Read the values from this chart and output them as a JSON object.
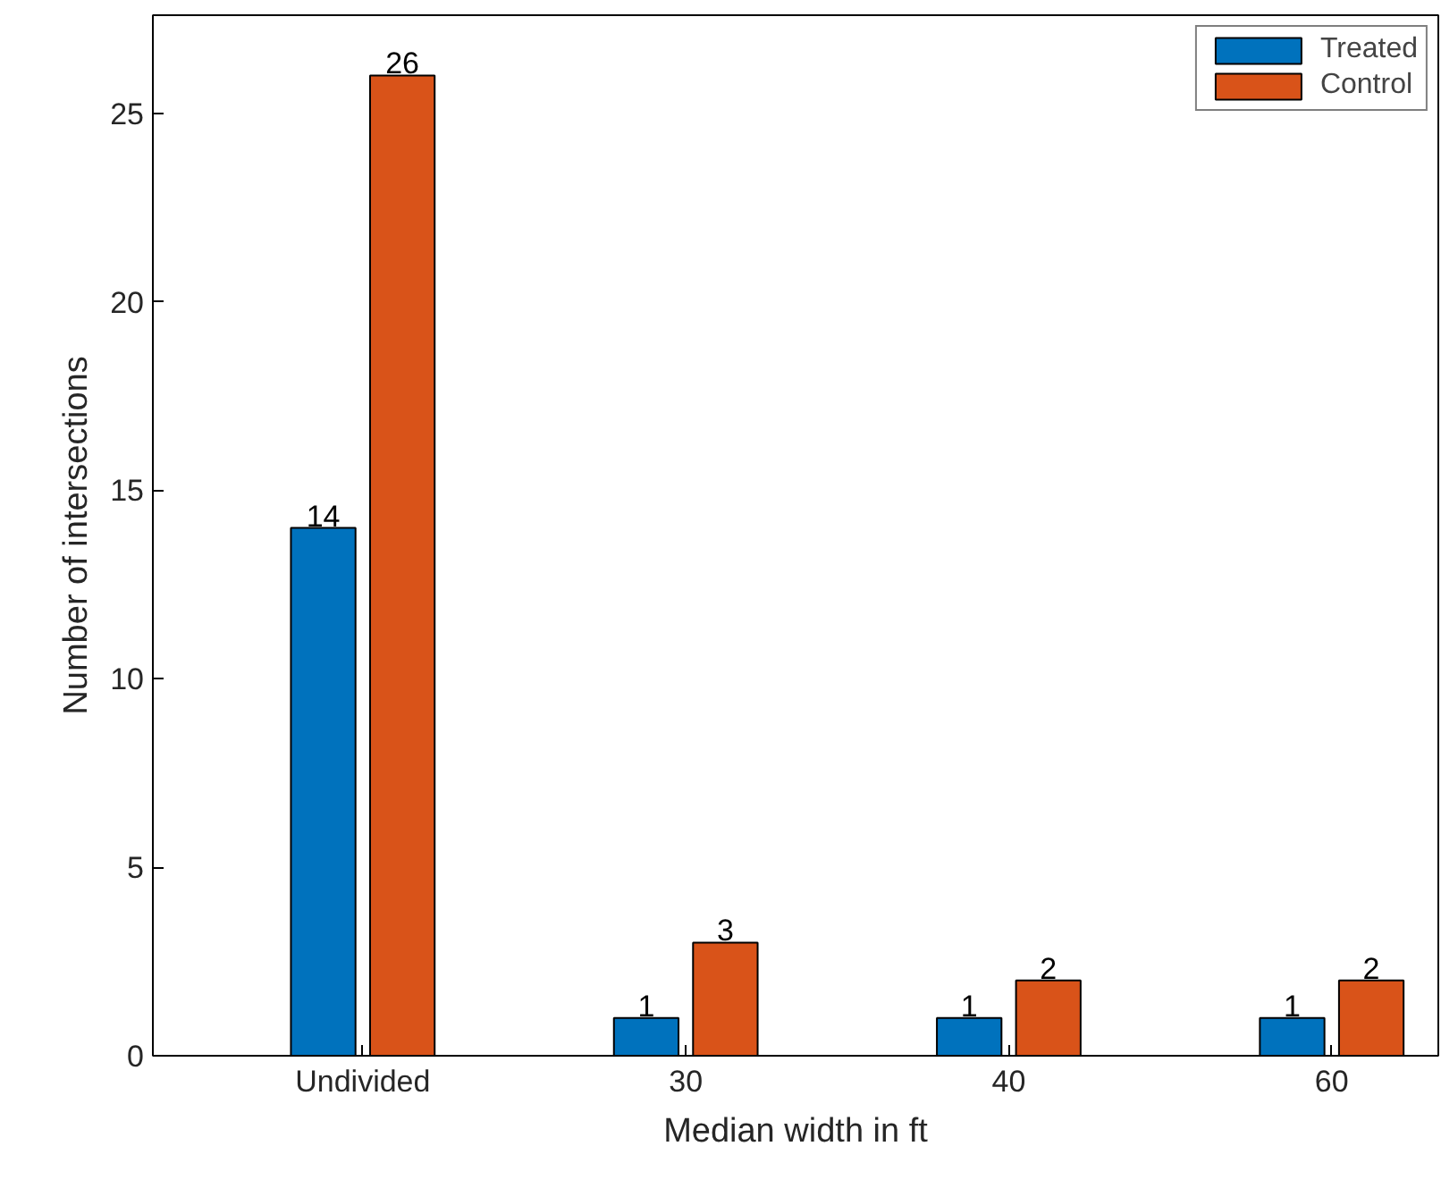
{
  "chart_data": {
    "type": "bar",
    "xlabel": "Median width in ft",
    "ylabel": "Number of intersections",
    "categories": [
      "Undivided",
      "30",
      "40",
      "60"
    ],
    "series": [
      {
        "name": "Treated",
        "color": "#0072bd",
        "values": [
          14,
          1,
          1,
          1
        ]
      },
      {
        "name": "Control",
        "color": "#d95319",
        "values": [
          26,
          3,
          2,
          2
        ]
      }
    ],
    "ylim": [
      0,
      27.6
    ],
    "yticks": [
      0,
      5,
      10,
      15,
      20,
      25
    ],
    "data_labels": true,
    "legend": "top right",
    "grid": false
  }
}
